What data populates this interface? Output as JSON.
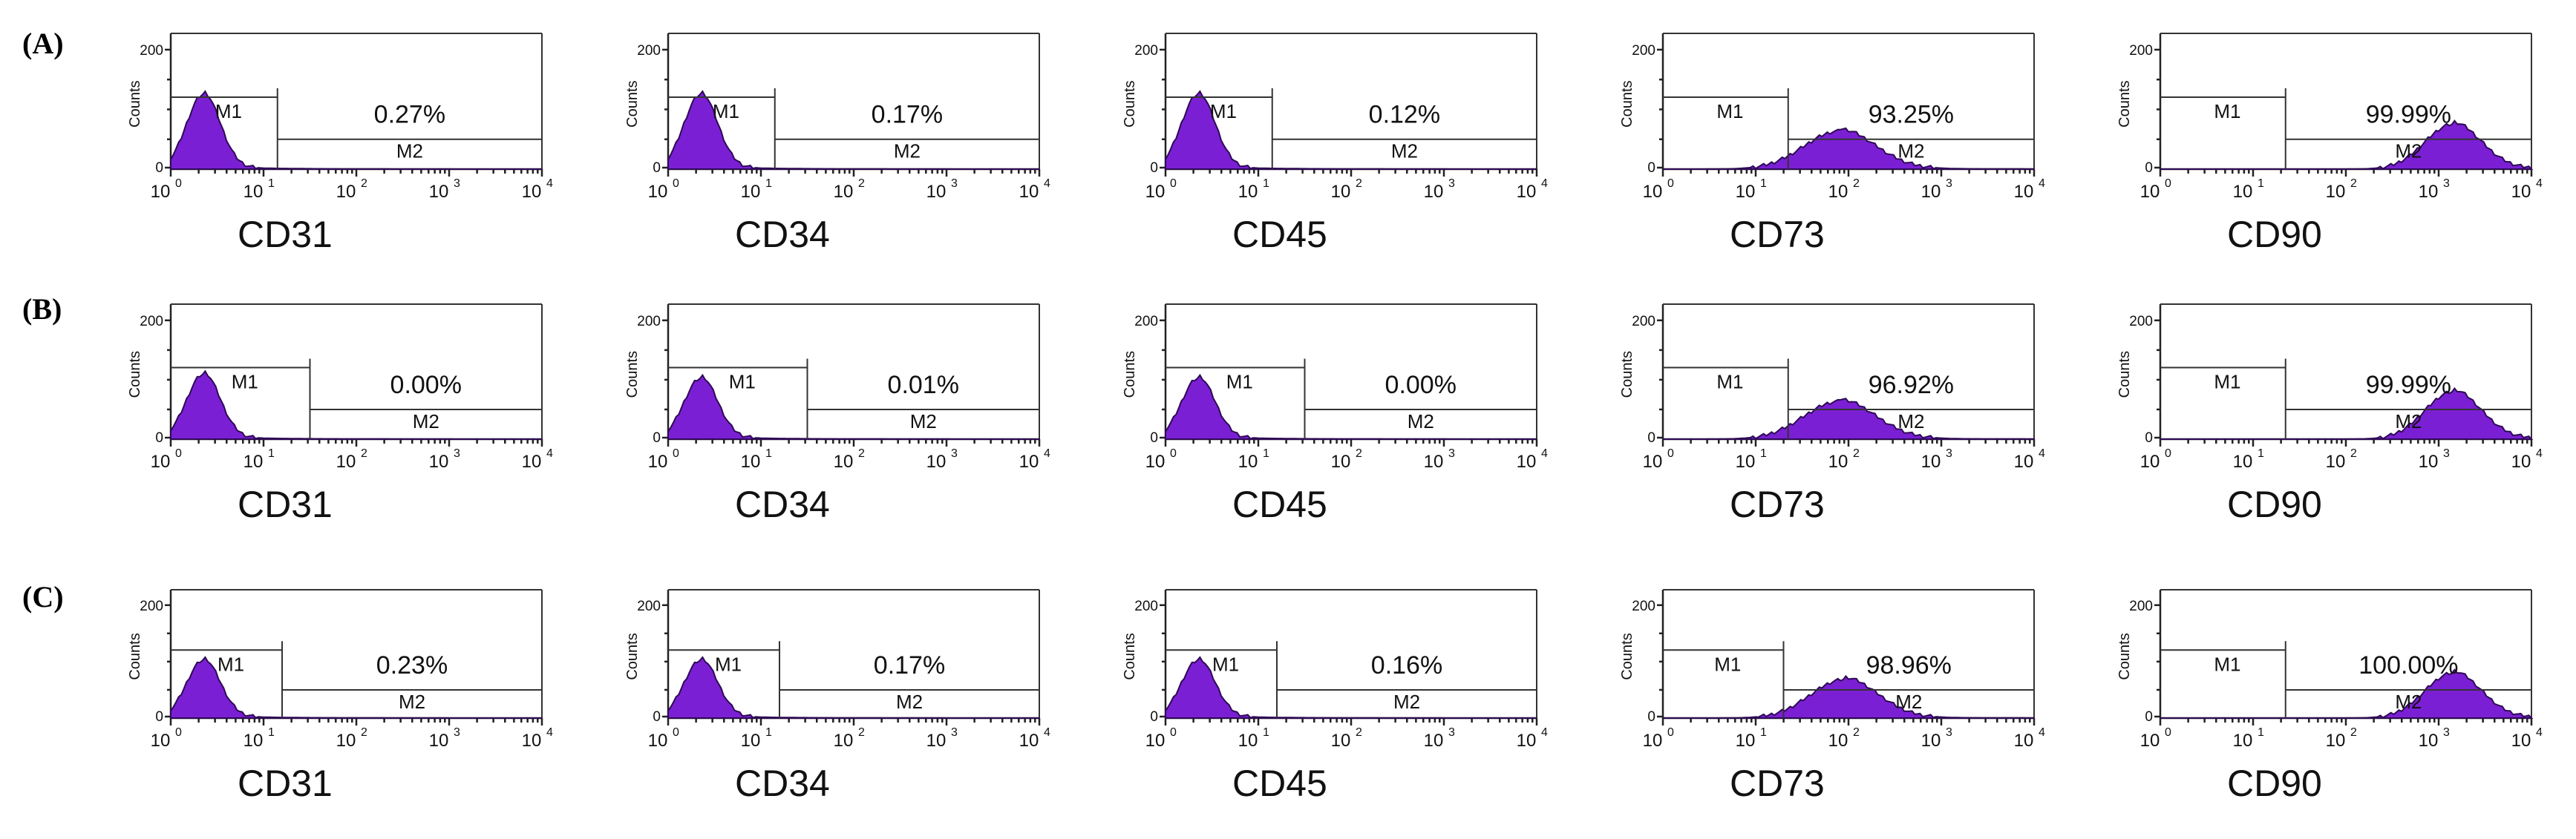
{
  "figure": {
    "rows": [
      "(A)",
      "(B)",
      "(C)"
    ]
  },
  "chart_data": [
    {
      "type": "histogram",
      "row": "(A)",
      "marker": "CD31",
      "ylabel": "Counts",
      "yticks": [
        "0",
        "200"
      ],
      "xscale": "log",
      "xlim": [
        1,
        10000
      ],
      "xticks": [
        "10",
        "10",
        "10",
        "10",
        "10"
      ],
      "xtick_exponents": [
        "0",
        "1",
        "2",
        "3",
        "4"
      ],
      "gates": [
        "M1",
        "M2"
      ],
      "m2_percent": "0.27%",
      "peak_log": 0.35,
      "spread": 0.18,
      "peak_frac": 0.55,
      "m1_end_log": 1.15
    },
    {
      "type": "histogram",
      "row": "(A)",
      "marker": "CD34",
      "ylabel": "Counts",
      "yticks": [
        "0",
        "200"
      ],
      "xscale": "log",
      "xlim": [
        1,
        10000
      ],
      "xticks": [
        "10",
        "10",
        "10",
        "10",
        "10"
      ],
      "xtick_exponents": [
        "0",
        "1",
        "2",
        "3",
        "4"
      ],
      "gates": [
        "M1",
        "M2"
      ],
      "m2_percent": "0.17%",
      "peak_log": 0.35,
      "spread": 0.18,
      "peak_frac": 0.55,
      "m1_end_log": 1.15
    },
    {
      "type": "histogram",
      "row": "(A)",
      "marker": "CD45",
      "ylabel": "Counts",
      "yticks": [
        "0",
        "200"
      ],
      "xscale": "log",
      "xlim": [
        1,
        10000
      ],
      "xticks": [
        "10",
        "10",
        "10",
        "10",
        "10"
      ],
      "xtick_exponents": [
        "0",
        "1",
        "2",
        "3",
        "4"
      ],
      "gates": [
        "M1",
        "M2"
      ],
      "m2_percent": "0.12%",
      "peak_log": 0.35,
      "spread": 0.18,
      "peak_frac": 0.55,
      "m1_end_log": 1.15
    },
    {
      "type": "histogram",
      "row": "(A)",
      "marker": "CD73",
      "ylabel": "Counts",
      "yticks": [
        "0",
        "200"
      ],
      "xscale": "log",
      "xlim": [
        1,
        10000
      ],
      "xticks": [
        "10",
        "10",
        "10",
        "10",
        "10"
      ],
      "xtick_exponents": [
        "0",
        "1",
        "2",
        "3",
        "4"
      ],
      "gates": [
        "M1",
        "M2"
      ],
      "m2_percent": "93.25%",
      "peak_log": 1.9,
      "spread": 0.38,
      "peak_frac": 0.28,
      "m1_end_log": 1.35
    },
    {
      "type": "histogram",
      "row": "(A)",
      "marker": "CD90",
      "ylabel": "Counts",
      "yticks": [
        "0",
        "200"
      ],
      "xscale": "log",
      "xlim": [
        1,
        10000
      ],
      "xticks": [
        "10",
        "10",
        "10",
        "10",
        "10"
      ],
      "xtick_exponents": [
        "0",
        "1",
        "2",
        "3",
        "4"
      ],
      "gates": [
        "M1",
        "M2"
      ],
      "m2_percent": "99.99%",
      "peak_log": 3.15,
      "spread": 0.3,
      "peak_frac": 0.33,
      "m1_end_log": 1.35
    },
    {
      "type": "histogram",
      "row": "(B)",
      "marker": "CD31",
      "ylabel": "Counts",
      "yticks": [
        "0",
        "200"
      ],
      "xscale": "log",
      "xlim": [
        1,
        10000
      ],
      "xticks": [
        "10",
        "10",
        "10",
        "10",
        "10"
      ],
      "xtick_exponents": [
        "0",
        "1",
        "2",
        "3",
        "4"
      ],
      "gates": [
        "M1",
        "M2"
      ],
      "m2_percent": "0.00%",
      "peak_log": 0.35,
      "spread": 0.18,
      "peak_frac": 0.48,
      "m1_end_log": 1.5
    },
    {
      "type": "histogram",
      "row": "(B)",
      "marker": "CD34",
      "ylabel": "Counts",
      "yticks": [
        "0",
        "200"
      ],
      "xscale": "log",
      "xlim": [
        1,
        10000
      ],
      "xticks": [
        "10",
        "10",
        "10",
        "10",
        "10"
      ],
      "xtick_exponents": [
        "0",
        "1",
        "2",
        "3",
        "4"
      ],
      "gates": [
        "M1",
        "M2"
      ],
      "m2_percent": "0.01%",
      "peak_log": 0.35,
      "spread": 0.18,
      "peak_frac": 0.45,
      "m1_end_log": 1.5
    },
    {
      "type": "histogram",
      "row": "(B)",
      "marker": "CD45",
      "ylabel": "Counts",
      "yticks": [
        "0",
        "200"
      ],
      "xscale": "log",
      "xlim": [
        1,
        10000
      ],
      "xticks": [
        "10",
        "10",
        "10",
        "10",
        "10"
      ],
      "xtick_exponents": [
        "0",
        "1",
        "2",
        "3",
        "4"
      ],
      "gates": [
        "M1",
        "M2"
      ],
      "m2_percent": "0.00%",
      "peak_log": 0.35,
      "spread": 0.18,
      "peak_frac": 0.45,
      "m1_end_log": 1.5
    },
    {
      "type": "histogram",
      "row": "(B)",
      "marker": "CD73",
      "ylabel": "Counts",
      "yticks": [
        "0",
        "200"
      ],
      "xscale": "log",
      "xlim": [
        1,
        10000
      ],
      "xticks": [
        "10",
        "10",
        "10",
        "10",
        "10"
      ],
      "xtick_exponents": [
        "0",
        "1",
        "2",
        "3",
        "4"
      ],
      "gates": [
        "M1",
        "M2"
      ],
      "m2_percent": "96.92%",
      "peak_log": 1.9,
      "spread": 0.38,
      "peak_frac": 0.28,
      "m1_end_log": 1.35
    },
    {
      "type": "histogram",
      "row": "(B)",
      "marker": "CD90",
      "ylabel": "Counts",
      "yticks": [
        "0",
        "200"
      ],
      "xscale": "log",
      "xlim": [
        1,
        10000
      ],
      "xticks": [
        "10",
        "10",
        "10",
        "10",
        "10"
      ],
      "xtick_exponents": [
        "0",
        "1",
        "2",
        "3",
        "4"
      ],
      "gates": [
        "M1",
        "M2"
      ],
      "m2_percent": "99.99%",
      "peak_log": 3.15,
      "spread": 0.3,
      "peak_frac": 0.35,
      "m1_end_log": 1.35
    },
    {
      "type": "histogram",
      "row": "(C)",
      "marker": "CD31",
      "ylabel": "Counts",
      "yticks": [
        "0",
        "200"
      ],
      "xscale": "log",
      "xlim": [
        1,
        10000
      ],
      "xticks": [
        "10",
        "10",
        "10",
        "10",
        "10"
      ],
      "xtick_exponents": [
        "0",
        "1",
        "2",
        "3",
        "4"
      ],
      "gates": [
        "M1",
        "M2"
      ],
      "m2_percent": "0.23%",
      "peak_log": 0.35,
      "spread": 0.18,
      "peak_frac": 0.45,
      "m1_end_log": 1.2
    },
    {
      "type": "histogram",
      "row": "(C)",
      "marker": "CD34",
      "ylabel": "Counts",
      "yticks": [
        "0",
        "200"
      ],
      "xscale": "log",
      "xlim": [
        1,
        10000
      ],
      "xticks": [
        "10",
        "10",
        "10",
        "10",
        "10"
      ],
      "xtick_exponents": [
        "0",
        "1",
        "2",
        "3",
        "4"
      ],
      "gates": [
        "M1",
        "M2"
      ],
      "m2_percent": "0.17%",
      "peak_log": 0.35,
      "spread": 0.18,
      "peak_frac": 0.45,
      "m1_end_log": 1.2
    },
    {
      "type": "histogram",
      "row": "(C)",
      "marker": "CD45",
      "ylabel": "Counts",
      "yticks": [
        "0",
        "200"
      ],
      "xscale": "log",
      "xlim": [
        1,
        10000
      ],
      "xticks": [
        "10",
        "10",
        "10",
        "10",
        "10"
      ],
      "xtick_exponents": [
        "0",
        "1",
        "2",
        "3",
        "4"
      ],
      "gates": [
        "M1",
        "M2"
      ],
      "m2_percent": "0.16%",
      "peak_log": 0.35,
      "spread": 0.18,
      "peak_frac": 0.45,
      "m1_end_log": 1.2
    },
    {
      "type": "histogram",
      "row": "(C)",
      "marker": "CD73",
      "ylabel": "Counts",
      "yticks": [
        "0",
        "200"
      ],
      "xscale": "log",
      "xlim": [
        1,
        10000
      ],
      "xticks": [
        "10",
        "10",
        "10",
        "10",
        "10"
      ],
      "xtick_exponents": [
        "0",
        "1",
        "2",
        "3",
        "4"
      ],
      "gates": [
        "M1",
        "M2"
      ],
      "m2_percent": "98.96%",
      "peak_log": 1.95,
      "spread": 0.36,
      "peak_frac": 0.3,
      "m1_end_log": 1.3
    },
    {
      "type": "histogram",
      "row": "(C)",
      "marker": "CD90",
      "ylabel": "Counts",
      "yticks": [
        "0",
        "200"
      ],
      "xscale": "log",
      "xlim": [
        1,
        10000
      ],
      "xticks": [
        "10",
        "10",
        "10",
        "10",
        "10"
      ],
      "xtick_exponents": [
        "0",
        "1",
        "2",
        "3",
        "4"
      ],
      "gates": [
        "M1",
        "M2"
      ],
      "m2_percent": "100.00%",
      "peak_log": 3.15,
      "spread": 0.3,
      "peak_frac": 0.35,
      "m1_end_log": 1.35
    }
  ]
}
